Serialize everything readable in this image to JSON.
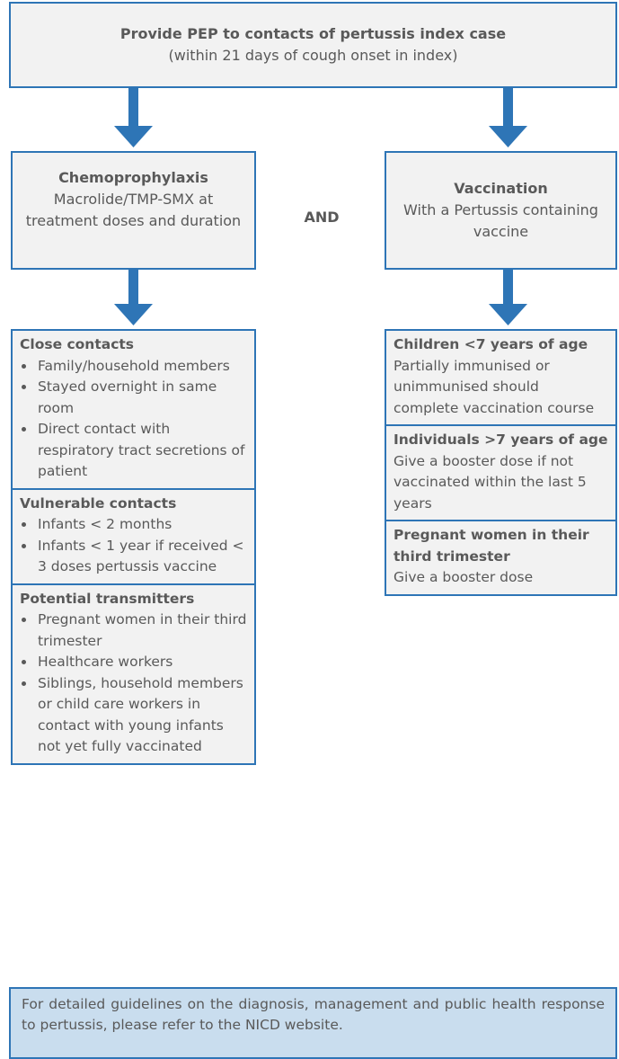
{
  "header": {
    "title": "Provide PEP to contacts of pertussis index case",
    "subtitle": "(within 21 days of cough onset in index)"
  },
  "chemoprophylaxis": {
    "title": "Chemoprophylaxis",
    "text": "Macrolide/TMP-SMX at treatment doses and duration"
  },
  "connector": "AND",
  "vaccination": {
    "title": "Vaccination",
    "text": "With a Pertussis containing vaccine"
  },
  "contacts": [
    {
      "title": "Close contacts",
      "items": [
        "Family/household members",
        "Stayed overnight in same room",
        "Direct contact with respiratory tract secretions of patient"
      ]
    },
    {
      "title": "Vulnerable contacts",
      "items": [
        "Infants < 2 months",
        "Infants < 1 year if received < 3 doses pertussis vaccine"
      ]
    },
    {
      "title": "Potential transmitters",
      "items": [
        "Pregnant women in their third trimester",
        "Healthcare workers",
        "Siblings, household members or child care workers in contact with young infants not yet fully vaccinated"
      ]
    }
  ],
  "vaccination_groups": [
    {
      "title": "Children <7 years of age",
      "text": "Partially immunised or unimmunised should complete vaccination course"
    },
    {
      "title": "Individuals >7 years of age",
      "text": "Give a booster dose if not vaccinated within the last 5 years"
    },
    {
      "title": "Pregnant women in their third trimester",
      "text": "Give a booster dose"
    }
  ],
  "footer": "For detailed guidelines on the diagnosis, management and public health response to pertussis, please refer to the NICD website."
}
